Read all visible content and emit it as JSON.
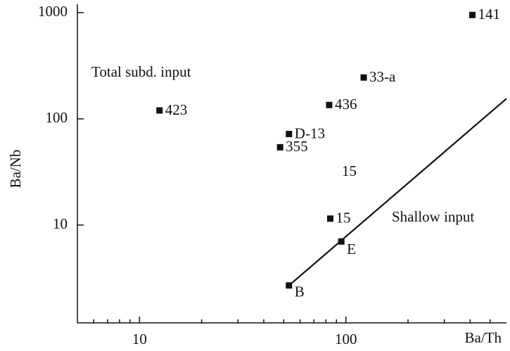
{
  "chart_data": {
    "type": "scatter",
    "xlabel": "Ba/Th",
    "ylabel": "Ba/Nb",
    "xlog": true,
    "ylog": true,
    "xlim": [
      5,
      600
    ],
    "ylim": [
      1.2,
      1200
    ],
    "xticks": [
      10,
      100
    ],
    "yticks": [
      10,
      100,
      1000
    ],
    "xminorticks": [
      6,
      7,
      8,
      9,
      20,
      30,
      40,
      50,
      60,
      70,
      80,
      90,
      200,
      300,
      400,
      500
    ],
    "color": "#111111",
    "x": [
      410,
      122,
      12.5,
      83,
      53,
      48,
      84,
      95,
      53
    ],
    "y": [
      950,
      245,
      120,
      135,
      72,
      54,
      11.5,
      7,
      2.7
    ],
    "labels": [
      "141",
      "33-a",
      "423",
      "436",
      "D-13",
      "355",
      "15",
      "E",
      "B"
    ],
    "line": {
      "x": [
        53,
        600
      ],
      "y": [
        2.7,
        155
      ]
    },
    "annotations": [
      "Total subd. input",
      "15",
      "Shallow input"
    ]
  }
}
